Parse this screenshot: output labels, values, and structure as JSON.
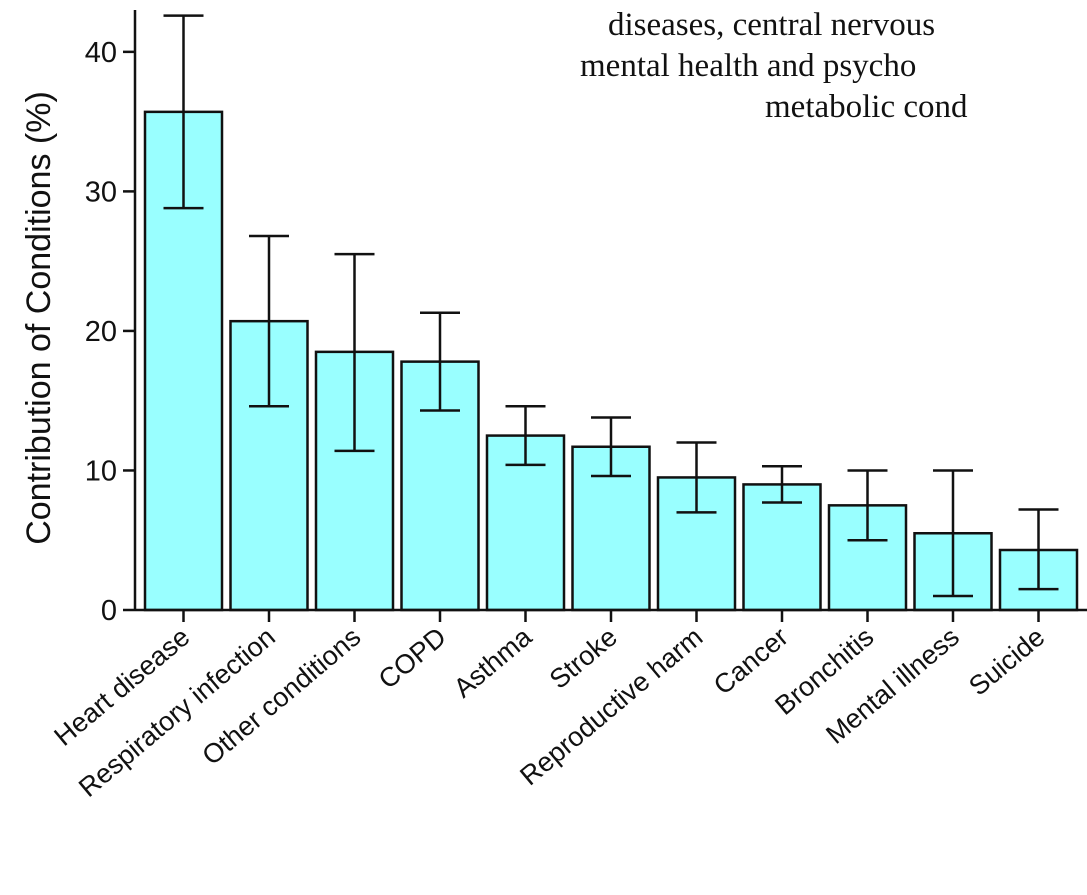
{
  "chart_data": {
    "type": "bar",
    "title": "",
    "xlabel": "",
    "ylabel": "Contribution of Conditions (%)",
    "ylim": [
      0,
      43
    ],
    "yticks": [
      0,
      10,
      20,
      30,
      40
    ],
    "grid": false,
    "legend": "none",
    "bar_color": "#99ffff",
    "edge_color": "#111111",
    "categories": [
      "Heart disease",
      "Respiratory infection",
      "Other conditions",
      "COPD",
      "Asthma",
      "Stroke",
      "Reproductive harm",
      "Cancer",
      "Bronchitis",
      "Mental illness",
      "Suicide"
    ],
    "values": [
      35.7,
      20.7,
      18.5,
      17.8,
      12.5,
      11.7,
      9.5,
      9.0,
      7.5,
      5.5,
      4.3
    ],
    "error_low": [
      28.8,
      14.6,
      11.4,
      14.3,
      10.4,
      9.6,
      7.0,
      7.7,
      5.0,
      1.0,
      1.5
    ],
    "error_high": [
      42.6,
      26.8,
      25.5,
      21.3,
      14.6,
      13.8,
      12.0,
      10.3,
      10.0,
      10.0,
      7.2
    ],
    "annotation_lines": [
      "diseases, central nervous",
      "mental health and psycho",
      "metabolic cond"
    ]
  }
}
